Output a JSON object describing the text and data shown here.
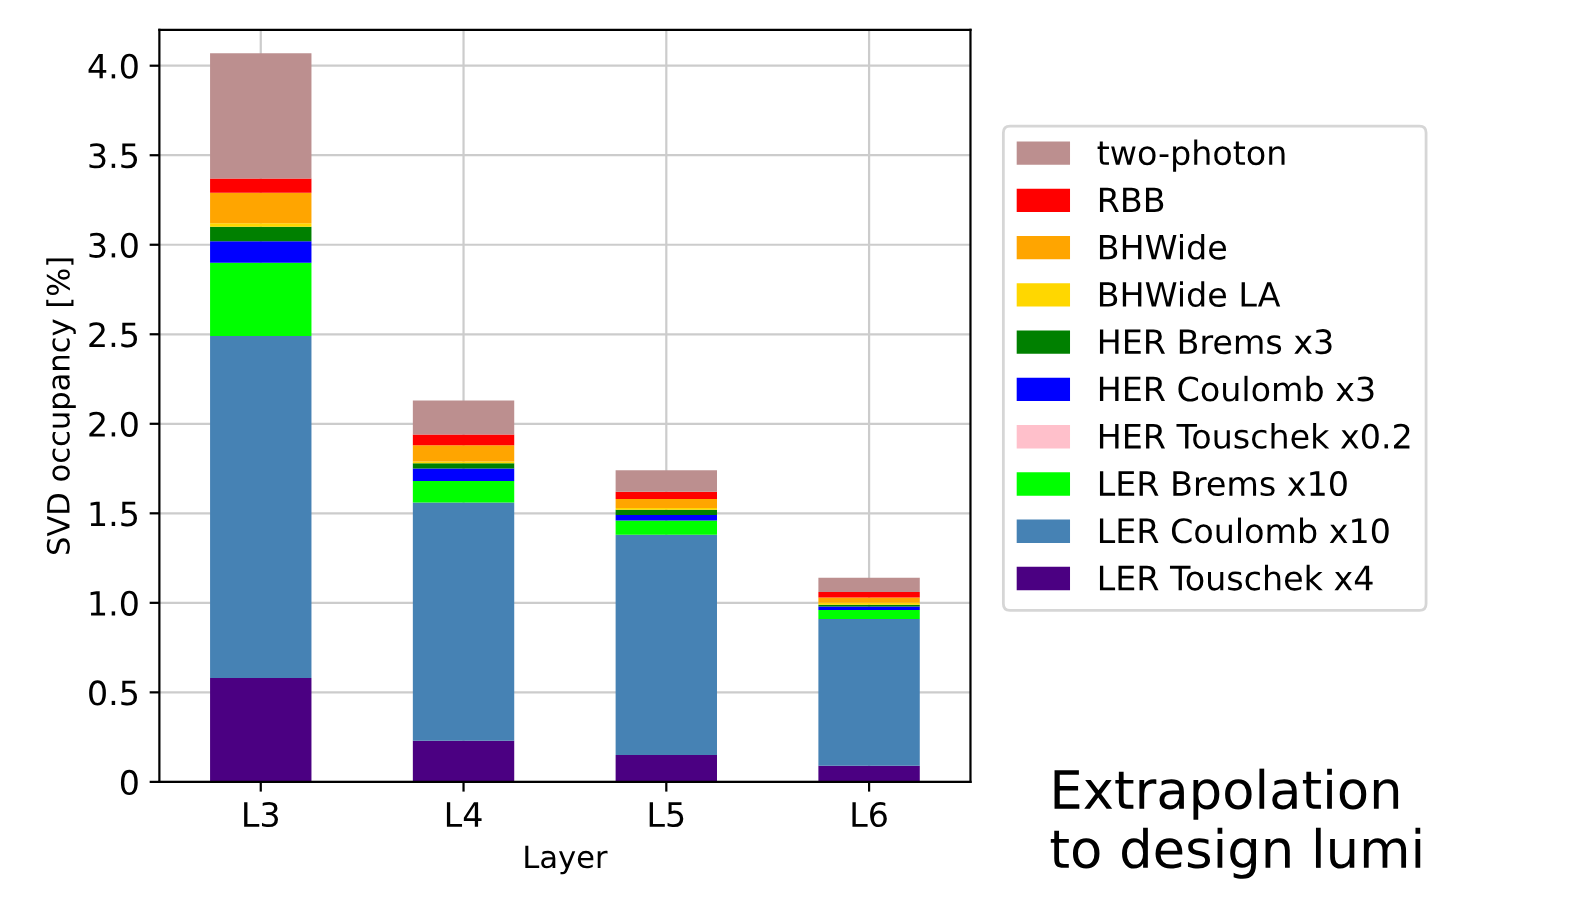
{
  "chart_data": {
    "type": "bar",
    "stacked": true,
    "xlabel": "Layer",
    "ylabel": "SVD occupancy [%]",
    "categories": [
      "L3",
      "L4",
      "L5",
      "L6"
    ],
    "series": [
      {
        "name": "LER Touschek x4",
        "color": "#4b0082",
        "values": [
          0.58,
          0.23,
          0.15,
          0.09
        ]
      },
      {
        "name": "LER Coulomb x10",
        "color": "#4682b4",
        "values": [
          1.91,
          1.33,
          1.23,
          0.82
        ]
      },
      {
        "name": "LER Brems x10",
        "color": "#00ff00",
        "values": [
          0.41,
          0.12,
          0.08,
          0.05
        ]
      },
      {
        "name": "HER Touschek x0.2",
        "color": "#ffc0cb",
        "values": [
          0,
          0,
          0,
          0
        ]
      },
      {
        "name": "HER Coulomb x3",
        "color": "#0000ff",
        "values": [
          0.12,
          0.07,
          0.03,
          0.02
        ]
      },
      {
        "name": "HER Brems x3",
        "color": "#008000",
        "values": [
          0.08,
          0.03,
          0.03,
          0.01
        ]
      },
      {
        "name": "BHWide LA",
        "color": "#ffd700",
        "values": [
          0.02,
          0.01,
          0.01,
          0.01
        ]
      },
      {
        "name": "BHWide",
        "color": "#ffa500",
        "values": [
          0.17,
          0.09,
          0.05,
          0.03
        ]
      },
      {
        "name": "RBB",
        "color": "#ff0000",
        "values": [
          0.08,
          0.06,
          0.04,
          0.03
        ]
      },
      {
        "name": "two-photon",
        "color": "#bc8f8f",
        "values": [
          0.7,
          0.19,
          0.12,
          0.08
        ]
      }
    ],
    "ylim": [
      0,
      4.2
    ],
    "yticks": [
      0,
      {
        "value": 0.5,
        "label": "0.5"
      },
      {
        "value": 1,
        "label": "1.0"
      },
      {
        "value": 1.5,
        "label": "1.5"
      },
      {
        "value": 2,
        "label": "2.0"
      },
      {
        "value": 2.5,
        "label": "2.5"
      },
      {
        "value": 3,
        "label": "3.0"
      },
      {
        "value": 3.5,
        "label": "3.5"
      },
      {
        "value": 4,
        "label": "4.0"
      }
    ],
    "grid": true,
    "legend": "right",
    "annotations": [
      "Extrapolation\nto design lumi"
    ]
  }
}
